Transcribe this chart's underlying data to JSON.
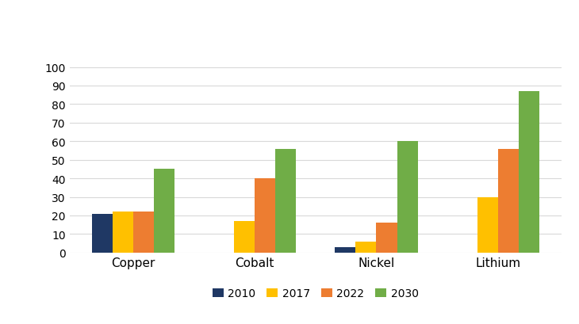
{
  "categories": [
    "Copper",
    "Cobalt",
    "Nickel",
    "Lithium"
  ],
  "series": {
    "2010": [
      21,
      0,
      3,
      0
    ],
    "2017": [
      22,
      17,
      6,
      30
    ],
    "2022": [
      22,
      40,
      16,
      56
    ],
    "2030": [
      45,
      56,
      60,
      87
    ]
  },
  "colors": {
    "2010": "#1f3864",
    "2017": "#ffc000",
    "2022": "#ed7d31",
    "2030": "#70ad47"
  },
  "ylim": [
    0,
    105
  ],
  "yticks": [
    0,
    10,
    20,
    30,
    40,
    50,
    60,
    70,
    80,
    90,
    100
  ],
  "legend_labels": [
    "2010",
    "2017",
    "2022",
    "2030"
  ],
  "bar_width": 0.17,
  "grid_color": "#d9d9d9",
  "background_color": "#ffffff"
}
